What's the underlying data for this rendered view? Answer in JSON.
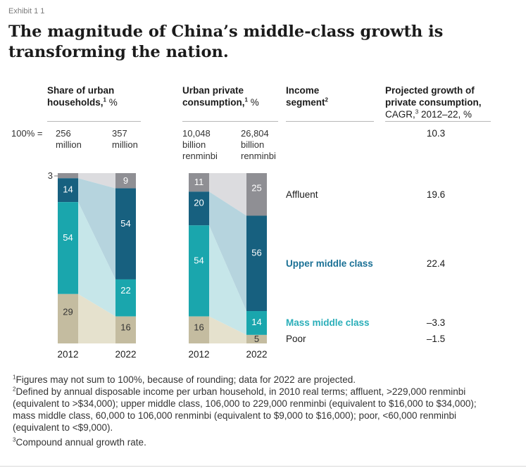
{
  "exhibit": "Exhibit 1 1",
  "title": "The magnitude of China’s middle-class growth is transforming the nation.",
  "headers": {
    "share": {
      "line1": "Share of urban",
      "line2": "households,",
      "sup": "1",
      "unit": "%"
    },
    "consumption": {
      "line1": "Urban private",
      "line2": "consumption,",
      "sup": "1",
      "unit": "%"
    },
    "segment": {
      "line1": "Income",
      "line2": "segment",
      "sup": "2"
    },
    "growth": {
      "line1": "Projected growth of",
      "line2": "private consumption,",
      "line3_a": "CAGR,",
      "sup": "3",
      "line3_b": "2012–22, %"
    }
  },
  "totals": {
    "prefix": "100% =",
    "households_2012": [
      "256",
      "million"
    ],
    "households_2022": [
      "357",
      "million"
    ],
    "consumption_2012": [
      "10,048",
      "billion",
      "renminbi"
    ],
    "consumption_2022": [
      "26,804",
      "billion",
      "renminbi"
    ],
    "growth_total": "10.3"
  },
  "segments": [
    {
      "name": "Affluent",
      "growth": "19.6",
      "style": "normal",
      "color": "#1b1b1b"
    },
    {
      "name": "Upper middle class",
      "growth": "22.4",
      "style": "bold",
      "color": "#1a7095"
    },
    {
      "name": "Mass middle class",
      "growth": "–3.3",
      "style": "bold",
      "color": "#2aaeb9"
    },
    {
      "name": "Poor",
      "growth": "–1.5",
      "style": "normal",
      "color": "#1b1b1b"
    }
  ],
  "chart_data": [
    {
      "type": "bar",
      "stacked": true,
      "title": "Share of urban households, %",
      "categories": [
        "2012",
        "2022"
      ],
      "series": [
        {
          "name": "Affluent",
          "values": [
            3,
            9
          ],
          "color": "#8f8f94"
        },
        {
          "name": "Upper middle class",
          "values": [
            14,
            54
          ],
          "color": "#17607f"
        },
        {
          "name": "Mass middle class",
          "values": [
            54,
            22
          ],
          "color": "#1aa6ad"
        },
        {
          "name": "Poor",
          "values": [
            29,
            16
          ],
          "color": "#c4bca0"
        }
      ],
      "ylim": [
        0,
        100
      ]
    },
    {
      "type": "bar",
      "stacked": true,
      "title": "Urban private consumption, %",
      "categories": [
        "2012",
        "2022"
      ],
      "series": [
        {
          "name": "Affluent",
          "values": [
            11,
            25
          ],
          "color": "#8f8f94"
        },
        {
          "name": "Upper middle class",
          "values": [
            20,
            56
          ],
          "color": "#17607f"
        },
        {
          "name": "Mass middle class",
          "values": [
            54,
            14
          ],
          "color": "#1aa6ad"
        },
        {
          "name": "Poor",
          "values": [
            16,
            5
          ],
          "color": "#c4bca0"
        }
      ],
      "ylim": [
        0,
        100
      ]
    }
  ],
  "colors": {
    "affluent": "#8f8f94",
    "upper": "#17607f",
    "mass": "#1aa6ad",
    "poor": "#c4bca0",
    "band_affluent": "#dcdcdf",
    "band_upper": "#b6d4de",
    "band_mass": "#c6e6e9",
    "band_poor": "#e5e1cd"
  },
  "notes": [
    {
      "sup": "1",
      "text": "Figures may not sum to 100%, because of rounding; data for 2022 are projected."
    },
    {
      "sup": "2",
      "text": "Defined by annual disposable income per urban household, in 2010 real terms; affluent, >229,000 renminbi (equivalent to >$34,000); upper middle class, 106,000 to 229,000 renminbi (equivalent to $16,000 to $34,000); mass middle class, 60,000 to 106,000 renminbi (equivalent to $9,000 to $16,000); poor, <60,000 renminbi (equivalent to <$9,000)."
    },
    {
      "sup": "3",
      "text": "Compound annual growth rate."
    }
  ]
}
